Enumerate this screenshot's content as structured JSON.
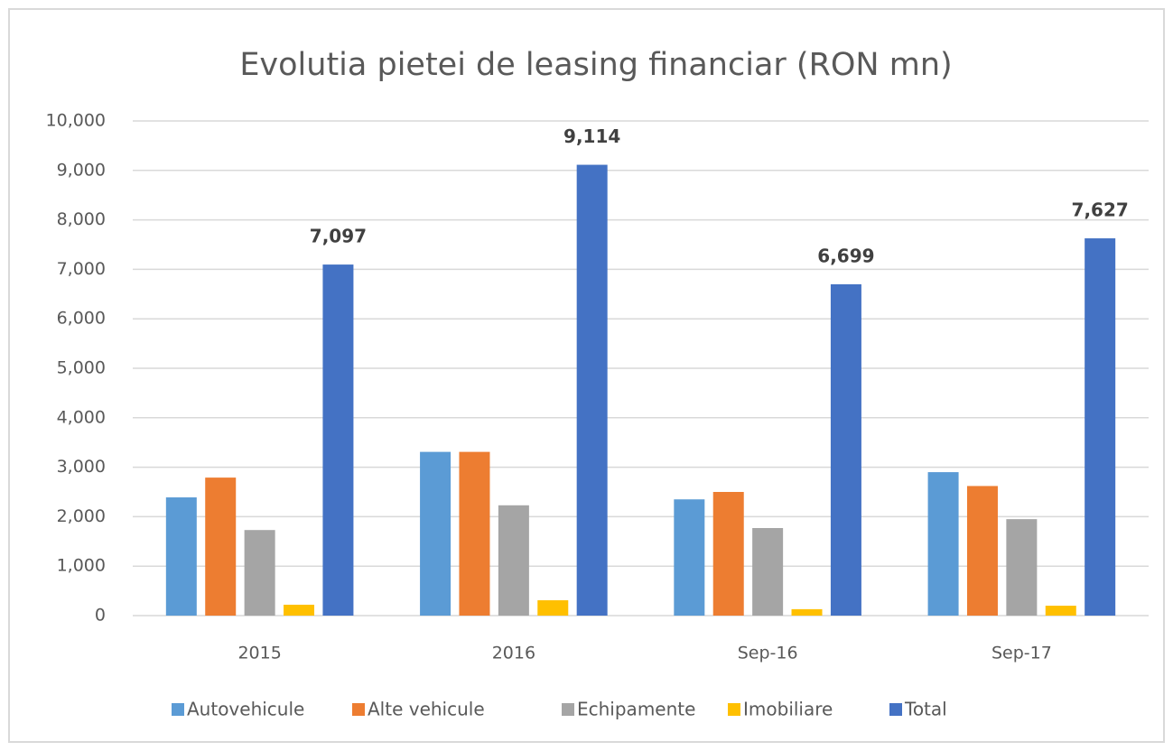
{
  "chart_data": {
    "type": "bar",
    "title": "Evolutia pietei de leasing financiar (RON mn)",
    "categories": [
      "2015",
      "2016",
      "Sep-16",
      "Sep-17"
    ],
    "series": [
      {
        "name": "Autovehicule",
        "color": "#5b9bd5",
        "values": [
          2390,
          3310,
          2350,
          2900
        ]
      },
      {
        "name": "Alte vehicule",
        "color": "#ed7d31",
        "values": [
          2790,
          3310,
          2500,
          2620
        ]
      },
      {
        "name": "Echipamente",
        "color": "#a5a5a5",
        "values": [
          1730,
          2230,
          1770,
          1950
        ]
      },
      {
        "name": "Imobiliare",
        "color": "#ffc000",
        "values": [
          220,
          310,
          130,
          200
        ]
      },
      {
        "name": "Total",
        "color": "#4472c4",
        "values": [
          7097,
          9114,
          6699,
          7627
        ],
        "value_labels": [
          "7,097",
          "9,114",
          "6,699",
          "7,627"
        ]
      }
    ],
    "ylim": [
      0,
      10000
    ],
    "yticks": [
      0,
      {
        "value": 1000,
        "label": "1,000"
      },
      {
        "value": 2000,
        "label": "2,000"
      },
      {
        "value": 3000,
        "label": "3,000"
      },
      {
        "value": 4000,
        "label": "4,000"
      },
      {
        "value": 5000,
        "label": "5,000"
      },
      {
        "value": 6000,
        "label": "6,000"
      },
      {
        "value": 7000,
        "label": "7,000"
      },
      {
        "value": 8000,
        "label": "8,000"
      },
      {
        "value": 9000,
        "label": "9,000"
      },
      {
        "value": 10000,
        "label": "10,000"
      }
    ],
    "grid": true,
    "legend": "bottom"
  }
}
